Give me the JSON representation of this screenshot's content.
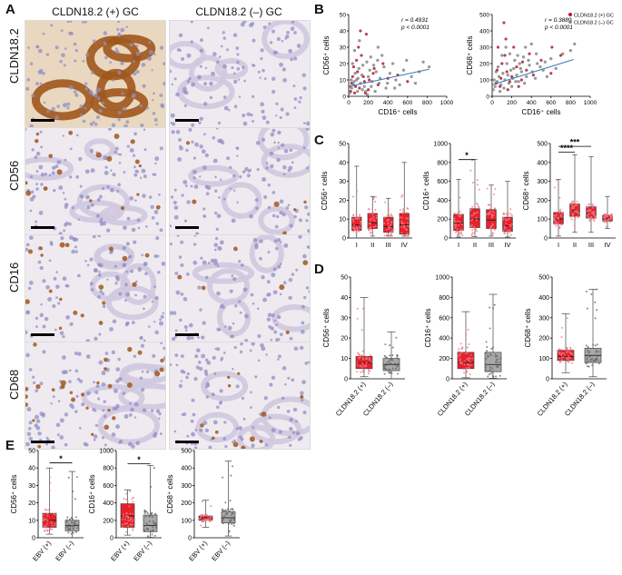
{
  "panel_letters": {
    "A": "A",
    "B": "B",
    "C": "C",
    "D": "D",
    "E": "E"
  },
  "panelA": {
    "col_headers": [
      "CLDN18.2 (+) GC",
      "CLDN18.2 (–) GC"
    ],
    "row_labels": [
      "CLDN18.2",
      "CD56",
      "CD16",
      "CD68"
    ]
  },
  "chart_data": [
    {
      "panel": "B",
      "type": "scatter",
      "xlabel": "CD16⁺ cells",
      "ylabel": "CD56⁺ cells",
      "xlim": [
        0,
        1000
      ],
      "ylim": [
        0,
        50
      ],
      "xticks": [
        0,
        200,
        400,
        600,
        800,
        1000
      ],
      "yticks": [
        0,
        10,
        20,
        30,
        40,
        50
      ],
      "annotation": [
        "r = 0.4931",
        "p < 0.0001"
      ],
      "fit": [
        [
          0,
          6
        ],
        [
          820,
          16.5
        ]
      ],
      "legend": [
        {
          "name": "CLDN18.2 (+) GC",
          "color": "#c8102e"
        },
        {
          "name": "CLDN18.2 (–) GC",
          "color": "#8c8c8c"
        }
      ],
      "series": [
        {
          "name": "CLDN18.2 (+) GC",
          "color": "#c8102e",
          "points": [
            [
              120,
              40
            ],
            [
              180,
              38
            ],
            [
              50,
              18
            ],
            [
              90,
              15
            ],
            [
              150,
              12
            ],
            [
              210,
              10
            ],
            [
              30,
              8
            ],
            [
              70,
              6
            ],
            [
              110,
              5
            ],
            [
              160,
              9
            ],
            [
              250,
              14
            ],
            [
              300,
              7
            ],
            [
              20,
              3
            ],
            [
              60,
              2
            ],
            [
              400,
              11
            ],
            [
              350,
              20
            ],
            [
              500,
              13
            ],
            [
              600,
              9
            ],
            [
              130,
              25
            ],
            [
              80,
              22
            ],
            [
              40,
              12
            ],
            [
              200,
              4
            ],
            [
              260,
              17
            ],
            [
              100,
              30
            ],
            [
              170,
              2
            ]
          ]
        },
        {
          "name": "CLDN18.2 (–) GC",
          "color": "#8c8c8c",
          "points": [
            [
              10,
              2
            ],
            [
              30,
              5
            ],
            [
              50,
              7
            ],
            [
              80,
              10
            ],
            [
              120,
              8
            ],
            [
              160,
              6
            ],
            [
              200,
              12
            ],
            [
              240,
              9
            ],
            [
              280,
              15
            ],
            [
              320,
              11
            ],
            [
              360,
              18
            ],
            [
              420,
              14
            ],
            [
              480,
              10
            ],
            [
              560,
              16
            ],
            [
              640,
              12
            ],
            [
              720,
              15
            ],
            [
              820,
              18
            ],
            [
              40,
              20
            ],
            [
              90,
              3
            ],
            [
              140,
              4
            ],
            [
              190,
              1
            ],
            [
              230,
              6
            ],
            [
              270,
              3
            ],
            [
              310,
              8
            ],
            [
              380,
              5
            ],
            [
              450,
              20
            ],
            [
              520,
              7
            ],
            [
              25,
              10
            ],
            [
              65,
              14
            ],
            [
              105,
              17
            ],
            [
              145,
              19
            ],
            [
              185,
              21
            ],
            [
              225,
              24
            ],
            [
              15,
              6
            ],
            [
              55,
              9
            ],
            [
              95,
              11
            ],
            [
              135,
              13
            ],
            [
              175,
              3
            ],
            [
              215,
              16
            ],
            [
              255,
              19
            ],
            [
              295,
              22
            ],
            [
              340,
              25
            ],
            [
              395,
              8
            ],
            [
              470,
              5
            ],
            [
              590,
              22
            ],
            [
              680,
              8
            ],
            [
              760,
              21
            ],
            [
              60,
              28
            ],
            [
              110,
              34
            ],
            [
              300,
              30
            ]
          ]
        }
      ]
    },
    {
      "panel": "B",
      "type": "scatter",
      "xlabel": "CD16⁺ cells",
      "ylabel": "CD68⁺ cells",
      "xlim": [
        0,
        1000
      ],
      "ylim": [
        0,
        500
      ],
      "xticks": [
        0,
        200,
        400,
        600,
        800,
        1000
      ],
      "yticks": [
        0,
        100,
        200,
        300,
        400,
        500
      ],
      "annotation": [
        "r = 0.3889",
        "p < 0.0001"
      ],
      "fit": [
        [
          0,
          70
        ],
        [
          830,
          225
        ]
      ],
      "series": [
        {
          "name": "CLDN18.2 (+) GC",
          "color": "#c8102e",
          "points": [
            [
              120,
              450
            ],
            [
              60,
              300
            ],
            [
              100,
              200
            ],
            [
              150,
              150
            ],
            [
              200,
              120
            ],
            [
              250,
              180
            ],
            [
              300,
              100
            ],
            [
              40,
              80
            ],
            [
              80,
              60
            ],
            [
              130,
              250
            ],
            [
              180,
              90
            ],
            [
              350,
              160
            ],
            [
              420,
              130
            ],
            [
              500,
              220
            ],
            [
              600,
              140
            ],
            [
              700,
              250
            ],
            [
              220,
              300
            ],
            [
              160,
              40
            ],
            [
              270,
              60
            ],
            [
              90,
              110
            ],
            [
              50,
              160
            ],
            [
              380,
              260
            ],
            [
              610,
              300
            ],
            [
              310,
              210
            ],
            [
              140,
              350
            ]
          ]
        },
        {
          "name": "CLDN18.2 (–) GC",
          "color": "#8c8c8c",
          "points": [
            [
              10,
              40
            ],
            [
              30,
              60
            ],
            [
              50,
              90
            ],
            [
              70,
              120
            ],
            [
              90,
              70
            ],
            [
              110,
              140
            ],
            [
              130,
              100
            ],
            [
              150,
              200
            ],
            [
              170,
              80
            ],
            [
              190,
              160
            ],
            [
              210,
              110
            ],
            [
              230,
              220
            ],
            [
              250,
              130
            ],
            [
              270,
              90
            ],
            [
              290,
              170
            ],
            [
              320,
              240
            ],
            [
              350,
              120
            ],
            [
              380,
              190
            ],
            [
              410,
              150
            ],
            [
              450,
              260
            ],
            [
              490,
              180
            ],
            [
              540,
              210
            ],
            [
              600,
              230
            ],
            [
              650,
              170
            ],
            [
              720,
              260
            ],
            [
              800,
              280
            ],
            [
              60,
              180
            ],
            [
              100,
              250
            ],
            [
              140,
              300
            ],
            [
              180,
              260
            ],
            [
              220,
              170
            ],
            [
              260,
              250
            ],
            [
              300,
              150
            ],
            [
              340,
              300
            ],
            [
              400,
              320
            ],
            [
              460,
              200
            ],
            [
              520,
              160
            ],
            [
              20,
              100
            ],
            [
              40,
              150
            ],
            [
              80,
              30
            ],
            [
              120,
              50
            ],
            [
              160,
              130
            ],
            [
              200,
              60
            ],
            [
              240,
              90
            ],
            [
              280,
              200
            ],
            [
              330,
              80
            ],
            [
              370,
              220
            ],
            [
              440,
              110
            ],
            [
              560,
              120
            ],
            [
              840,
              320
            ]
          ]
        }
      ]
    },
    {
      "panel": "C",
      "type": "box",
      "ylabel": "CD56⁺ cells",
      "categories": [
        "I",
        "II",
        "III",
        "IV"
      ],
      "ylim": [
        0,
        50
      ],
      "yticks": [
        0,
        10,
        20,
        30,
        40,
        50
      ],
      "boxes": [
        {
          "min": 0,
          "q1": 4,
          "median": 7,
          "q3": 11,
          "max": 38
        },
        {
          "min": 1,
          "q1": 5,
          "median": 8,
          "q3": 13,
          "max": 22
        },
        {
          "min": 1,
          "q1": 3,
          "median": 6,
          "q3": 11,
          "max": 21
        },
        {
          "min": 1,
          "q1": 2,
          "median": 7,
          "q3": 13,
          "max": 40
        }
      ],
      "significance": []
    },
    {
      "panel": "C",
      "type": "box",
      "ylabel": "CD16⁺ cells",
      "categories": [
        "I",
        "II",
        "III",
        "IV"
      ],
      "ylim": [
        0,
        1000
      ],
      "yticks": [
        0,
        200,
        400,
        600,
        800,
        1000
      ],
      "boxes": [
        {
          "min": 10,
          "q1": 80,
          "median": 160,
          "q3": 250,
          "max": 620
        },
        {
          "min": 15,
          "q1": 110,
          "median": 200,
          "q3": 310,
          "max": 830
        },
        {
          "min": 20,
          "q1": 100,
          "median": 190,
          "q3": 300,
          "max": 560
        },
        {
          "min": 10,
          "q1": 70,
          "median": 130,
          "q3": 220,
          "max": 600
        }
      ],
      "significance": [
        {
          "from": 0,
          "to": 1,
          "label": "*",
          "y": 830
        }
      ]
    },
    {
      "panel": "C",
      "type": "box",
      "ylabel": "CD68⁺ cells",
      "categories": [
        "I",
        "II",
        "III",
        "IV"
      ],
      "ylim": [
        0,
        500
      ],
      "yticks": [
        0,
        100,
        200,
        300,
        400,
        500
      ],
      "boxes": [
        {
          "min": 10,
          "q1": 75,
          "median": 100,
          "q3": 135,
          "max": 310
        },
        {
          "min": 30,
          "q1": 115,
          "median": 145,
          "q3": 180,
          "max": 440
        },
        {
          "min": 30,
          "q1": 105,
          "median": 130,
          "q3": 165,
          "max": 430
        },
        {
          "min": 50,
          "q1": 90,
          "median": 105,
          "q3": 120,
          "max": 220
        }
      ],
      "significance": [
        {
          "from": 0,
          "to": 1,
          "label": "****",
          "y": 455
        },
        {
          "from": 0,
          "to": 2,
          "label": "***",
          "y": 485
        }
      ]
    },
    {
      "panel": "D",
      "type": "box",
      "ylabel": "CD56⁺ cells",
      "categories": [
        "CLDN18.2 (+)",
        "CLDN18.2 (–)"
      ],
      "ylim": [
        0,
        50
      ],
      "yticks": [
        0,
        10,
        20,
        30,
        40,
        50
      ],
      "boxes": [
        {
          "min": 1,
          "q1": 5,
          "median": 8,
          "q3": 11,
          "max": 40
        },
        {
          "min": 0,
          "q1": 4,
          "median": 7,
          "q3": 10,
          "max": 23
        }
      ],
      "significance": []
    },
    {
      "panel": "D",
      "type": "box",
      "ylabel": "CD16⁺ cells",
      "categories": [
        "CLDN18.2 (+)",
        "CLDN18.2 (–)"
      ],
      "ylim": [
        0,
        1000
      ],
      "yticks": [
        0,
        200,
        400,
        600,
        800,
        1000
      ],
      "boxes": [
        {
          "min": 10,
          "q1": 100,
          "median": 160,
          "q3": 260,
          "max": 660
        },
        {
          "min": 5,
          "q1": 70,
          "median": 140,
          "q3": 260,
          "max": 830
        }
      ],
      "significance": []
    },
    {
      "panel": "D",
      "type": "box",
      "ylabel": "CD68⁺ cells",
      "categories": [
        "CLDN18.2 (+)",
        "CLDN18.2 (–)"
      ],
      "ylim": [
        0,
        500
      ],
      "yticks": [
        0,
        100,
        200,
        300,
        400,
        500
      ],
      "boxes": [
        {
          "min": 30,
          "q1": 90,
          "median": 110,
          "q3": 140,
          "max": 320
        },
        {
          "min": 10,
          "q1": 80,
          "median": 115,
          "q3": 150,
          "max": 440
        }
      ],
      "significance": []
    },
    {
      "panel": "E",
      "type": "box",
      "ylabel": "CD56⁺ cells",
      "categories": [
        "EBV (+)",
        "EBV (–)"
      ],
      "ylim": [
        0,
        50
      ],
      "yticks": [
        0,
        10,
        20,
        30,
        40,
        50
      ],
      "boxes": [
        {
          "min": 2,
          "q1": 6,
          "median": 10,
          "q3": 14,
          "max": 40
        },
        {
          "min": 0,
          "q1": 4,
          "median": 7,
          "q3": 10,
          "max": 38
        }
      ],
      "significance": [
        {
          "from": 0,
          "to": 1,
          "label": "*",
          "y": 43
        }
      ]
    },
    {
      "panel": "E",
      "type": "box",
      "ylabel": "CD16⁺ cells",
      "categories": [
        "EBV (+)",
        "EBV (–)"
      ],
      "ylim": [
        0,
        1000
      ],
      "yticks": [
        0,
        200,
        400,
        600,
        800,
        1000
      ],
      "boxes": [
        {
          "min": 30,
          "q1": 120,
          "median": 250,
          "q3": 390,
          "max": 550
        },
        {
          "min": 5,
          "q1": 70,
          "median": 140,
          "q3": 260,
          "max": 830
        }
      ],
      "significance": [
        {
          "from": 0,
          "to": 1,
          "label": "*",
          "y": 850
        }
      ]
    },
    {
      "panel": "E",
      "type": "box",
      "ylabel": "CD68⁺ cells",
      "categories": [
        "EBV (+)",
        "EBV (–)"
      ],
      "ylim": [
        0,
        500
      ],
      "yticks": [
        0,
        100,
        200,
        300,
        400,
        500
      ],
      "boxes": [
        {
          "min": 60,
          "q1": 100,
          "median": 115,
          "q3": 125,
          "max": 215
        },
        {
          "min": 10,
          "q1": 85,
          "median": 115,
          "q3": 150,
          "max": 440
        }
      ],
      "significance": []
    }
  ],
  "colors": {
    "positive": "#e8202a",
    "negative": "#a9a9a9",
    "stain_brown": "#a0571c",
    "hematoxylin": "#8f8fc4"
  }
}
